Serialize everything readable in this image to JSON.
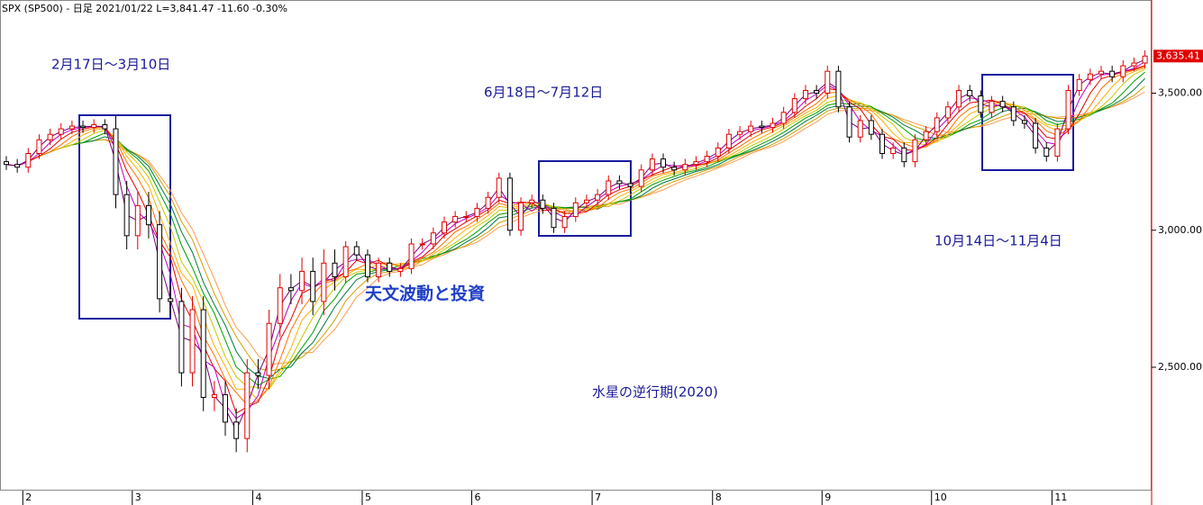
{
  "chart_data": {
    "type": "candlestick",
    "header": "SPX (SP500) - 日足  2021/01/22 L=3,841.47 -11.60 -0.30%",
    "categories": [
      null,
      null,
      "2",
      null,
      null,
      null,
      null,
      null,
      null,
      null,
      null,
      null,
      "3",
      null,
      null,
      null,
      null,
      null,
      null,
      null,
      null,
      null,
      null,
      "4",
      null,
      null,
      null,
      null,
      null,
      null,
      null,
      null,
      null,
      "5",
      null,
      null,
      null,
      null,
      null,
      null,
      null,
      null,
      null,
      "6",
      null,
      null,
      null,
      null,
      null,
      null,
      null,
      null,
      null,
      null,
      "7",
      null,
      null,
      null,
      null,
      null,
      null,
      null,
      null,
      null,
      null,
      "8",
      null,
      null,
      null,
      null,
      null,
      null,
      null,
      null,
      null,
      "9",
      null,
      null,
      null,
      null,
      null,
      null,
      null,
      null,
      null,
      "10",
      null,
      null,
      null,
      null,
      null,
      null,
      null,
      null,
      null,
      null,
      "11",
      null,
      null,
      null,
      null,
      null,
      null,
      null,
      null
    ],
    "open": [
      3250,
      3240,
      3230,
      3280,
      3330,
      3350,
      3370,
      3380,
      3375,
      3385,
      3370,
      3130,
      2980,
      3090,
      3020,
      2750,
      2740,
      2480,
      2710,
      2390,
      2400,
      2300,
      2240,
      2480,
      2470,
      2660,
      2790,
      2780,
      2850,
      2740,
      2880,
      2830,
      2940,
      2910,
      2830,
      2880,
      2850,
      2860,
      2950,
      2950,
      2990,
      3030,
      3050,
      3050,
      3080,
      3120,
      3190,
      3000,
      3100,
      3110,
      3080,
      3010,
      3050,
      3100,
      3110,
      3130,
      3180,
      3170,
      3160,
      3220,
      3260,
      3230,
      3220,
      3240,
      3250,
      3270,
      3300,
      3350,
      3360,
      3380,
      3375,
      3390,
      3430,
      3480,
      3510,
      3500,
      3580,
      3450,
      3340,
      3400,
      3350,
      3280,
      3300,
      3250,
      3330,
      3360,
      3410,
      3450,
      3510,
      3490,
      3430,
      3470,
      3450,
      3400,
      3390,
      3300,
      3270,
      3370,
      3510,
      3550,
      3570,
      3580,
      3560,
      3600,
      3610
    ],
    "high": [
      3270,
      3260,
      3300,
      3350,
      3370,
      3390,
      3400,
      3400,
      3405,
      3405,
      3420,
      3180,
      3140,
      3140,
      3070,
      2800,
      2790,
      2760,
      2760,
      2450,
      2450,
      2350,
      2530,
      2530,
      2710,
      2840,
      2840,
      2900,
      2900,
      2930,
      2930,
      2960,
      2960,
      2930,
      2900,
      2900,
      2880,
      2970,
      2970,
      3010,
      3050,
      3070,
      3070,
      3100,
      3140,
      3210,
      3210,
      3120,
      3130,
      3130,
      3100,
      3070,
      3120,
      3130,
      3150,
      3200,
      3200,
      3190,
      3240,
      3280,
      3280,
      3250,
      3260,
      3270,
      3290,
      3320,
      3370,
      3380,
      3400,
      3400,
      3410,
      3450,
      3500,
      3530,
      3530,
      3600,
      3600,
      3470,
      3420,
      3420,
      3370,
      3320,
      3320,
      3350,
      3380,
      3430,
      3470,
      3530,
      3530,
      3510,
      3490,
      3490,
      3470,
      3420,
      3410,
      3320,
      3390,
      3530,
      3570,
      3590,
      3600,
      3600,
      3620,
      3630,
      3656
    ],
    "low": [
      3220,
      3210,
      3210,
      3260,
      3310,
      3330,
      3350,
      3355,
      3355,
      3350,
      3080,
      2930,
      2930,
      2970,
      2700,
      2690,
      2430,
      2430,
      2340,
      2340,
      2250,
      2190,
      2190,
      2420,
      2420,
      2610,
      2730,
      2730,
      2690,
      2690,
      2780,
      2810,
      2890,
      2810,
      2810,
      2830,
      2830,
      2840,
      2930,
      2930,
      2970,
      3010,
      3030,
      3030,
      3060,
      3100,
      2980,
      2980,
      3080,
      3060,
      2990,
      2990,
      3030,
      3080,
      3090,
      3110,
      3150,
      3140,
      3140,
      3200,
      3210,
      3200,
      3200,
      3220,
      3230,
      3250,
      3280,
      3330,
      3340,
      3355,
      3355,
      3370,
      3410,
      3460,
      3480,
      3480,
      3430,
      3320,
      3320,
      3330,
      3260,
      3260,
      3230,
      3230,
      3310,
      3340,
      3390,
      3430,
      3470,
      3410,
      3410,
      3430,
      3380,
      3370,
      3280,
      3250,
      3250,
      3350,
      3490,
      3530,
      3550,
      3540,
      3540,
      3580,
      3590
    ],
    "close": [
      3240,
      3230,
      3280,
      3330,
      3350,
      3370,
      3380,
      3375,
      3385,
      3370,
      3130,
      2980,
      3090,
      3020,
      2750,
      2740,
      2480,
      2710,
      2390,
      2400,
      2300,
      2240,
      2480,
      2470,
      2660,
      2790,
      2780,
      2850,
      2740,
      2880,
      2830,
      2940,
      2910,
      2830,
      2880,
      2850,
      2860,
      2950,
      2950,
      2990,
      3030,
      3050,
      3050,
      3080,
      3120,
      3190,
      3000,
      3100,
      3110,
      3080,
      3010,
      3050,
      3100,
      3110,
      3130,
      3180,
      3170,
      3160,
      3220,
      3260,
      3230,
      3220,
      3240,
      3250,
      3270,
      3300,
      3350,
      3360,
      3380,
      3375,
      3390,
      3430,
      3480,
      3510,
      3500,
      3580,
      3450,
      3340,
      3400,
      3350,
      3280,
      3300,
      3250,
      3330,
      3360,
      3410,
      3450,
      3510,
      3490,
      3430,
      3470,
      3450,
      3400,
      3390,
      3300,
      3270,
      3370,
      3510,
      3550,
      3570,
      3580,
      3560,
      3600,
      3610,
      3635.41
    ],
    "up_color": "#e00000",
    "down_color": "#000000",
    "ribbon_colors": [
      "#7a007a",
      "#c000c0",
      "#e00000",
      "#ff7000",
      "#ffb000",
      "#c8c800",
      "#00a000",
      "#007840",
      "#d0a000",
      "#ff9a50"
    ],
    "ylim": [
      2050,
      3840
    ],
    "yticks": [
      {
        "value": 2500,
        "label": "2,500.00"
      },
      {
        "value": 3000,
        "label": "3,000.00"
      },
      {
        "value": 3500,
        "label": "3,500.00"
      }
    ],
    "price_tag": "3,635.41",
    "annotations": [
      "2月17日～3月10日",
      "6月18日～7月12日",
      "10月14日～11月4日",
      "天文波動と投資",
      "水星の逆行期(2020)"
    ]
  }
}
